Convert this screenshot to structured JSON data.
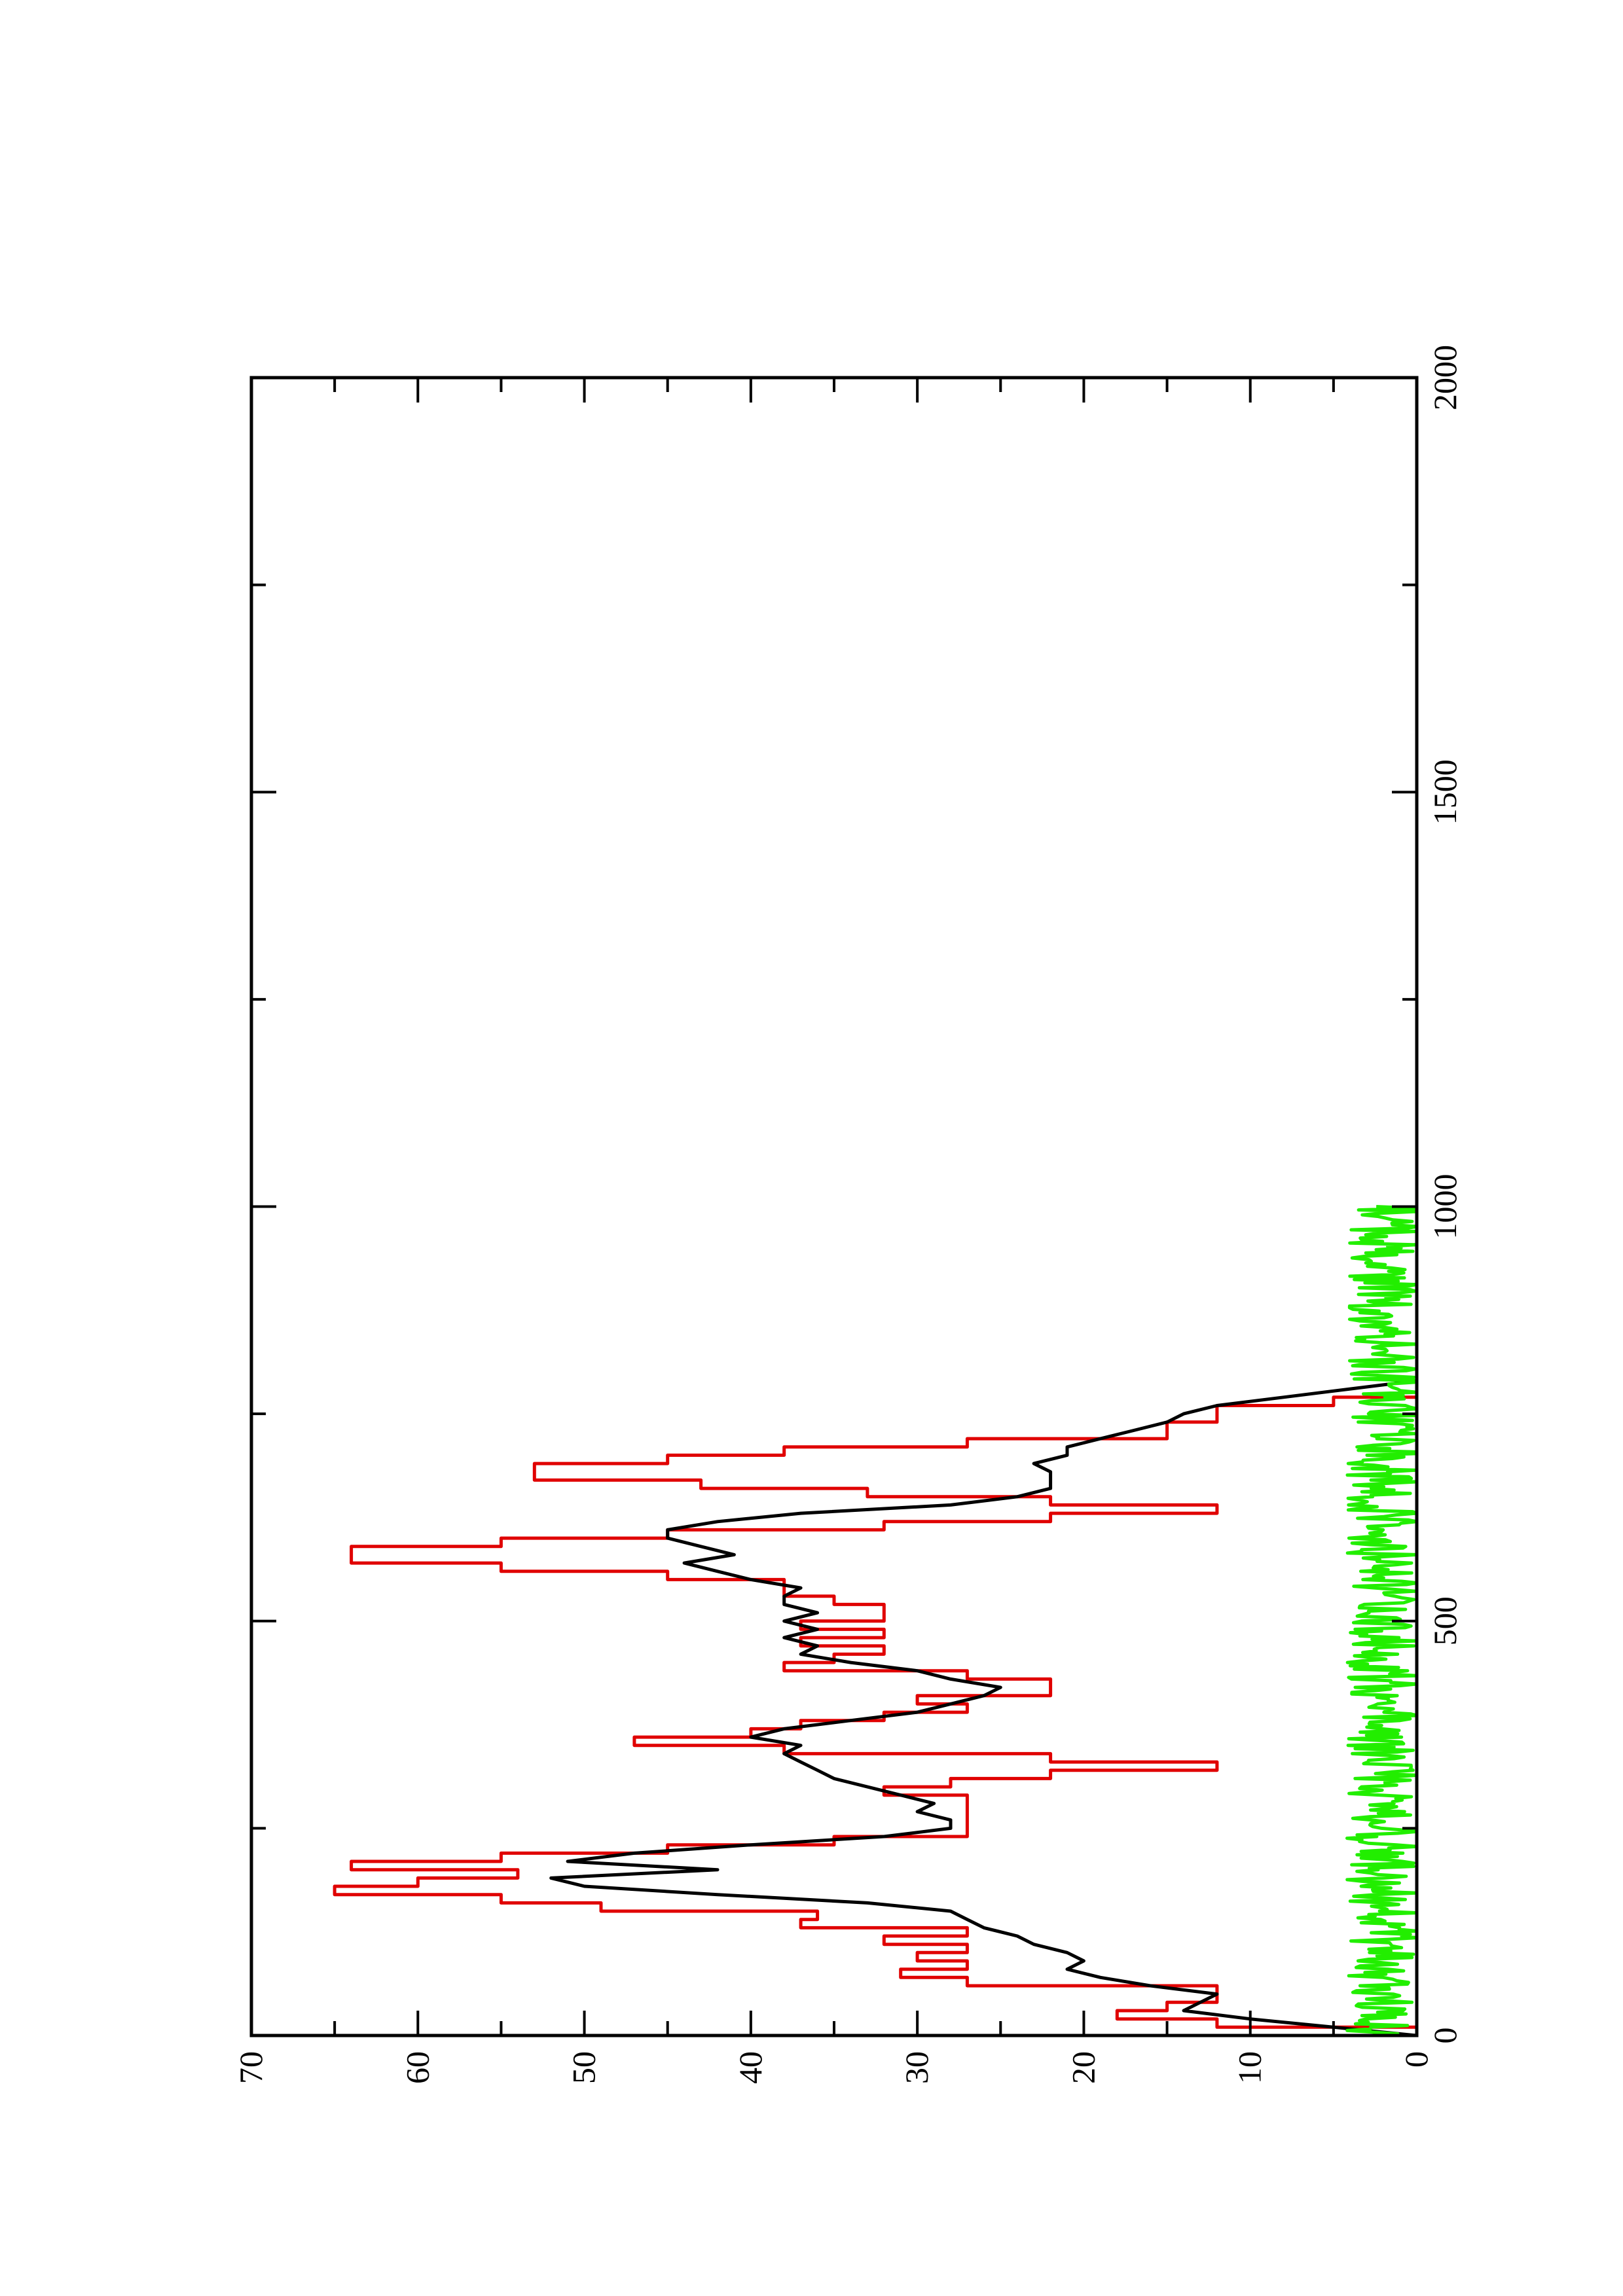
{
  "chart_data": {
    "type": "line",
    "orientation": "rotated-90-ccw",
    "title": "",
    "xlabel": "",
    "ylabel": "",
    "xlim": [
      0,
      2000
    ],
    "ylim": [
      0,
      70
    ],
    "x_ticks": [
      0,
      500,
      1000,
      1500,
      2000
    ],
    "y_ticks": [
      0,
      10,
      20,
      30,
      40,
      50,
      60,
      70
    ],
    "x_tick_labels": [
      "0",
      "500",
      "1000",
      "1500",
      "2000"
    ],
    "y_tick_labels": [
      "0",
      "10",
      "20",
      "30",
      "40",
      "50",
      "60",
      "70"
    ],
    "grid": false,
    "legend": "none",
    "series": [
      {
        "color": "#e00000",
        "step": true,
        "x": [
          0,
          10,
          20,
          30,
          40,
          50,
          60,
          70,
          80,
          90,
          100,
          110,
          120,
          130,
          140,
          150,
          160,
          170,
          180,
          190,
          200,
          210,
          220,
          230,
          240,
          250,
          260,
          270,
          280,
          290,
          300,
          310,
          320,
          330,
          340,
          350,
          360,
          370,
          380,
          390,
          400,
          410,
          420,
          430,
          440,
          450,
          460,
          470,
          480,
          490,
          500,
          510,
          520,
          530,
          540,
          550,
          560,
          570,
          580,
          590,
          600,
          610,
          620,
          630,
          640,
          650,
          660,
          670,
          680,
          690,
          700,
          710,
          720,
          730,
          740,
          750,
          760,
          770,
          780,
          790,
          800,
          810,
          820,
          830,
          840,
          850,
          860,
          870,
          880,
          890,
          900,
          910,
          920,
          930,
          940,
          950,
          960,
          970,
          980,
          990,
          1000
        ],
        "y": [
          0,
          12,
          18,
          15,
          12,
          12,
          27,
          31,
          27,
          30,
          27,
          32,
          27,
          37,
          36,
          49,
          55,
          65,
          60,
          54,
          64,
          55,
          45,
          35,
          27,
          27,
          27,
          27,
          27,
          32,
          28,
          22,
          12,
          22,
          38,
          47,
          40,
          37,
          32,
          27,
          30,
          22,
          22,
          27,
          38,
          35,
          32,
          37,
          32,
          37,
          32,
          32,
          35,
          38,
          38,
          45,
          55,
          64,
          64,
          55,
          45,
          32,
          22,
          12,
          22,
          33,
          43,
          53,
          53,
          45,
          38,
          27,
          15,
          15,
          12,
          12,
          5,
          0,
          0,
          0,
          0,
          0,
          0,
          0,
          0,
          0,
          0,
          0,
          0,
          0,
          0,
          0,
          0,
          0,
          0,
          0,
          0,
          0,
          0,
          0,
          0
        ]
      },
      {
        "color": "#000000",
        "step": false,
        "x": [
          0,
          10,
          20,
          30,
          40,
          50,
          60,
          70,
          80,
          90,
          100,
          110,
          120,
          130,
          140,
          150,
          160,
          170,
          180,
          190,
          200,
          210,
          220,
          230,
          240,
          250,
          260,
          270,
          280,
          290,
          300,
          310,
          320,
          330,
          340,
          350,
          360,
          370,
          380,
          390,
          400,
          410,
          420,
          430,
          440,
          450,
          460,
          470,
          480,
          490,
          500,
          510,
          520,
          530,
          540,
          550,
          560,
          570,
          580,
          590,
          600,
          610,
          620,
          630,
          640,
          650,
          660,
          670,
          680,
          690,
          700,
          710,
          720,
          730,
          740,
          750,
          760,
          770,
          780,
          790,
          800,
          810,
          820,
          830,
          840,
          850,
          860,
          870,
          880,
          890,
          900,
          910,
          920,
          930,
          940,
          950,
          960,
          970,
          980,
          990,
          1000
        ],
        "y": [
          0,
          5,
          10,
          14,
          13,
          12,
          16,
          19,
          21,
          20,
          21,
          23,
          24,
          26,
          27,
          28,
          33,
          42,
          50,
          52,
          42,
          51,
          47,
          40,
          32,
          28,
          28,
          30,
          29,
          31,
          33,
          35,
          36,
          37,
          38,
          37,
          40,
          38,
          34,
          30,
          28,
          26,
          25,
          28,
          30,
          34,
          37,
          36,
          38,
          36,
          38,
          36,
          38,
          38,
          37,
          40,
          42,
          44,
          41,
          43,
          45,
          45,
          42,
          37,
          28,
          24,
          22,
          22,
          22,
          23,
          21,
          21,
          19,
          17,
          15,
          14,
          12,
          8,
          4,
          0,
          0,
          0,
          0,
          0,
          0,
          0,
          0,
          0,
          0,
          0,
          0,
          0,
          0,
          0,
          0,
          0,
          0,
          0,
          0,
          0,
          0
        ]
      },
      {
        "color": "#22ee00",
        "step": false,
        "noise": true,
        "x_range": [
          0,
          1000
        ],
        "y_range": [
          0,
          5
        ],
        "y_mean": 2
      }
    ]
  }
}
